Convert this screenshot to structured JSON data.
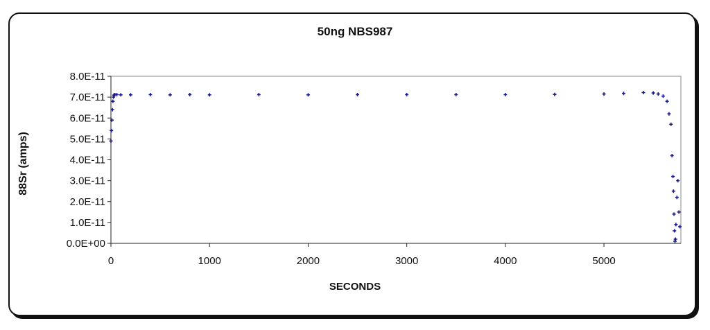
{
  "chart_data": {
    "type": "scatter",
    "title": "50ng NBS987",
    "xlabel": "SECONDS",
    "ylabel": "88Sr (amps)",
    "xlim": [
      0,
      5780
    ],
    "ylim": [
      0,
      8e-11
    ],
    "x_ticks": [
      "0",
      "1000",
      "2000",
      "3000",
      "4000",
      "5000"
    ],
    "x_tick_values": [
      0,
      1000,
      2000,
      3000,
      4000,
      5000
    ],
    "y_ticks": [
      "0.0E+00",
      "1.0E-11",
      "2.0E-11",
      "3.0E-11",
      "4.0E-11",
      "5.0E-11",
      "6.0E-11",
      "7.0E-11",
      "8.0E-11"
    ],
    "y_tick_values": [
      0,
      1e-11,
      2e-11,
      3e-11,
      4e-11,
      5e-11,
      6e-11,
      7e-11,
      8e-11
    ],
    "grid": false,
    "marker_color": "#1a1a8c",
    "series": [
      {
        "x": [
          0,
          5,
          10,
          15,
          20,
          25,
          30,
          40,
          60,
          100,
          200,
          400,
          600,
          800,
          1000,
          1500,
          2000,
          2500,
          3000,
          3500,
          4000,
          4500,
          5000,
          5200,
          5400,
          5500,
          5550,
          5600,
          5640,
          5660,
          5680,
          5690,
          5700,
          5705,
          5710,
          5715,
          5720,
          5725,
          5730,
          5740,
          5750,
          5760,
          5770
        ],
        "values": [
          4.9e-11,
          5.4e-11,
          5.9e-11,
          6.4e-11,
          6.8e-11,
          7e-11,
          7.1e-11,
          7.12e-11,
          7.12e-11,
          7.11e-11,
          7.11e-11,
          7.12e-11,
          7.11e-11,
          7.12e-11,
          7.11e-11,
          7.12e-11,
          7.11e-11,
          7.12e-11,
          7.12e-11,
          7.12e-11,
          7.12e-11,
          7.13e-11,
          7.15e-11,
          7.18e-11,
          7.22e-11,
          7.2e-11,
          7.15e-11,
          7.05e-11,
          6.8e-11,
          6.2e-11,
          5.7e-11,
          4.2e-11,
          3.2e-11,
          2.5e-11,
          1.4e-11,
          6e-12,
          1e-12,
          2e-12,
          9e-12,
          2.2e-11,
          3e-11,
          1.5e-11,
          8e-12
        ]
      }
    ]
  }
}
